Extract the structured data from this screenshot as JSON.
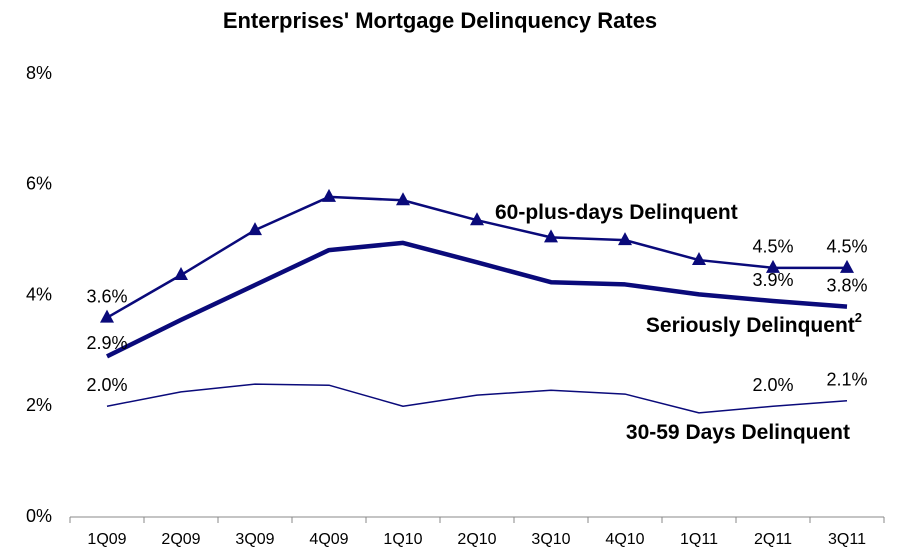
{
  "chart_data": {
    "type": "line",
    "title": "Enterprises' Mortgage Delinquency Rates",
    "categories": [
      "1Q09",
      "2Q09",
      "3Q09",
      "4Q09",
      "1Q10",
      "2Q10",
      "3Q10",
      "4Q10",
      "1Q11",
      "2Q11",
      "3Q11"
    ],
    "series": [
      {
        "name": "60-plus-days Delinquent",
        "color": "#0a0a7a",
        "marker": "triangle",
        "values": [
          3.6,
          4.37,
          5.18,
          5.78,
          5.72,
          5.36,
          5.05,
          5.0,
          4.64,
          4.5,
          4.5
        ],
        "value_labels": [
          "3.6%",
          null,
          null,
          null,
          null,
          null,
          null,
          null,
          null,
          "4.5%",
          "4.5%"
        ]
      },
      {
        "name": "Seriously Delinquent",
        "name_superscript": "2",
        "color": "#0a0a7a",
        "values": [
          2.9,
          3.56,
          4.19,
          4.82,
          4.95,
          4.6,
          4.24,
          4.2,
          4.02,
          3.9,
          3.8
        ],
        "value_labels": [
          "2.9%",
          null,
          null,
          null,
          null,
          null,
          null,
          null,
          null,
          "3.9%",
          "3.8%"
        ]
      },
      {
        "name": "30-59 Days Delinquent",
        "color": "#0a0a7a",
        "values": [
          2.0,
          2.26,
          2.4,
          2.38,
          2.0,
          2.2,
          2.29,
          2.22,
          1.88,
          2.0,
          2.1
        ],
        "value_labels": [
          "2.0%",
          null,
          null,
          null,
          null,
          null,
          null,
          null,
          null,
          "2.0%",
          "2.1%"
        ]
      }
    ],
    "ylim": [
      0,
      8
    ],
    "yticks": [
      {
        "value": 0,
        "label": "0%"
      },
      {
        "value": 2,
        "label": "2%"
      },
      {
        "value": 4,
        "label": "4%"
      },
      {
        "value": 6,
        "label": "6%"
      },
      {
        "value": 8,
        "label": "8%"
      }
    ],
    "grid": false
  }
}
